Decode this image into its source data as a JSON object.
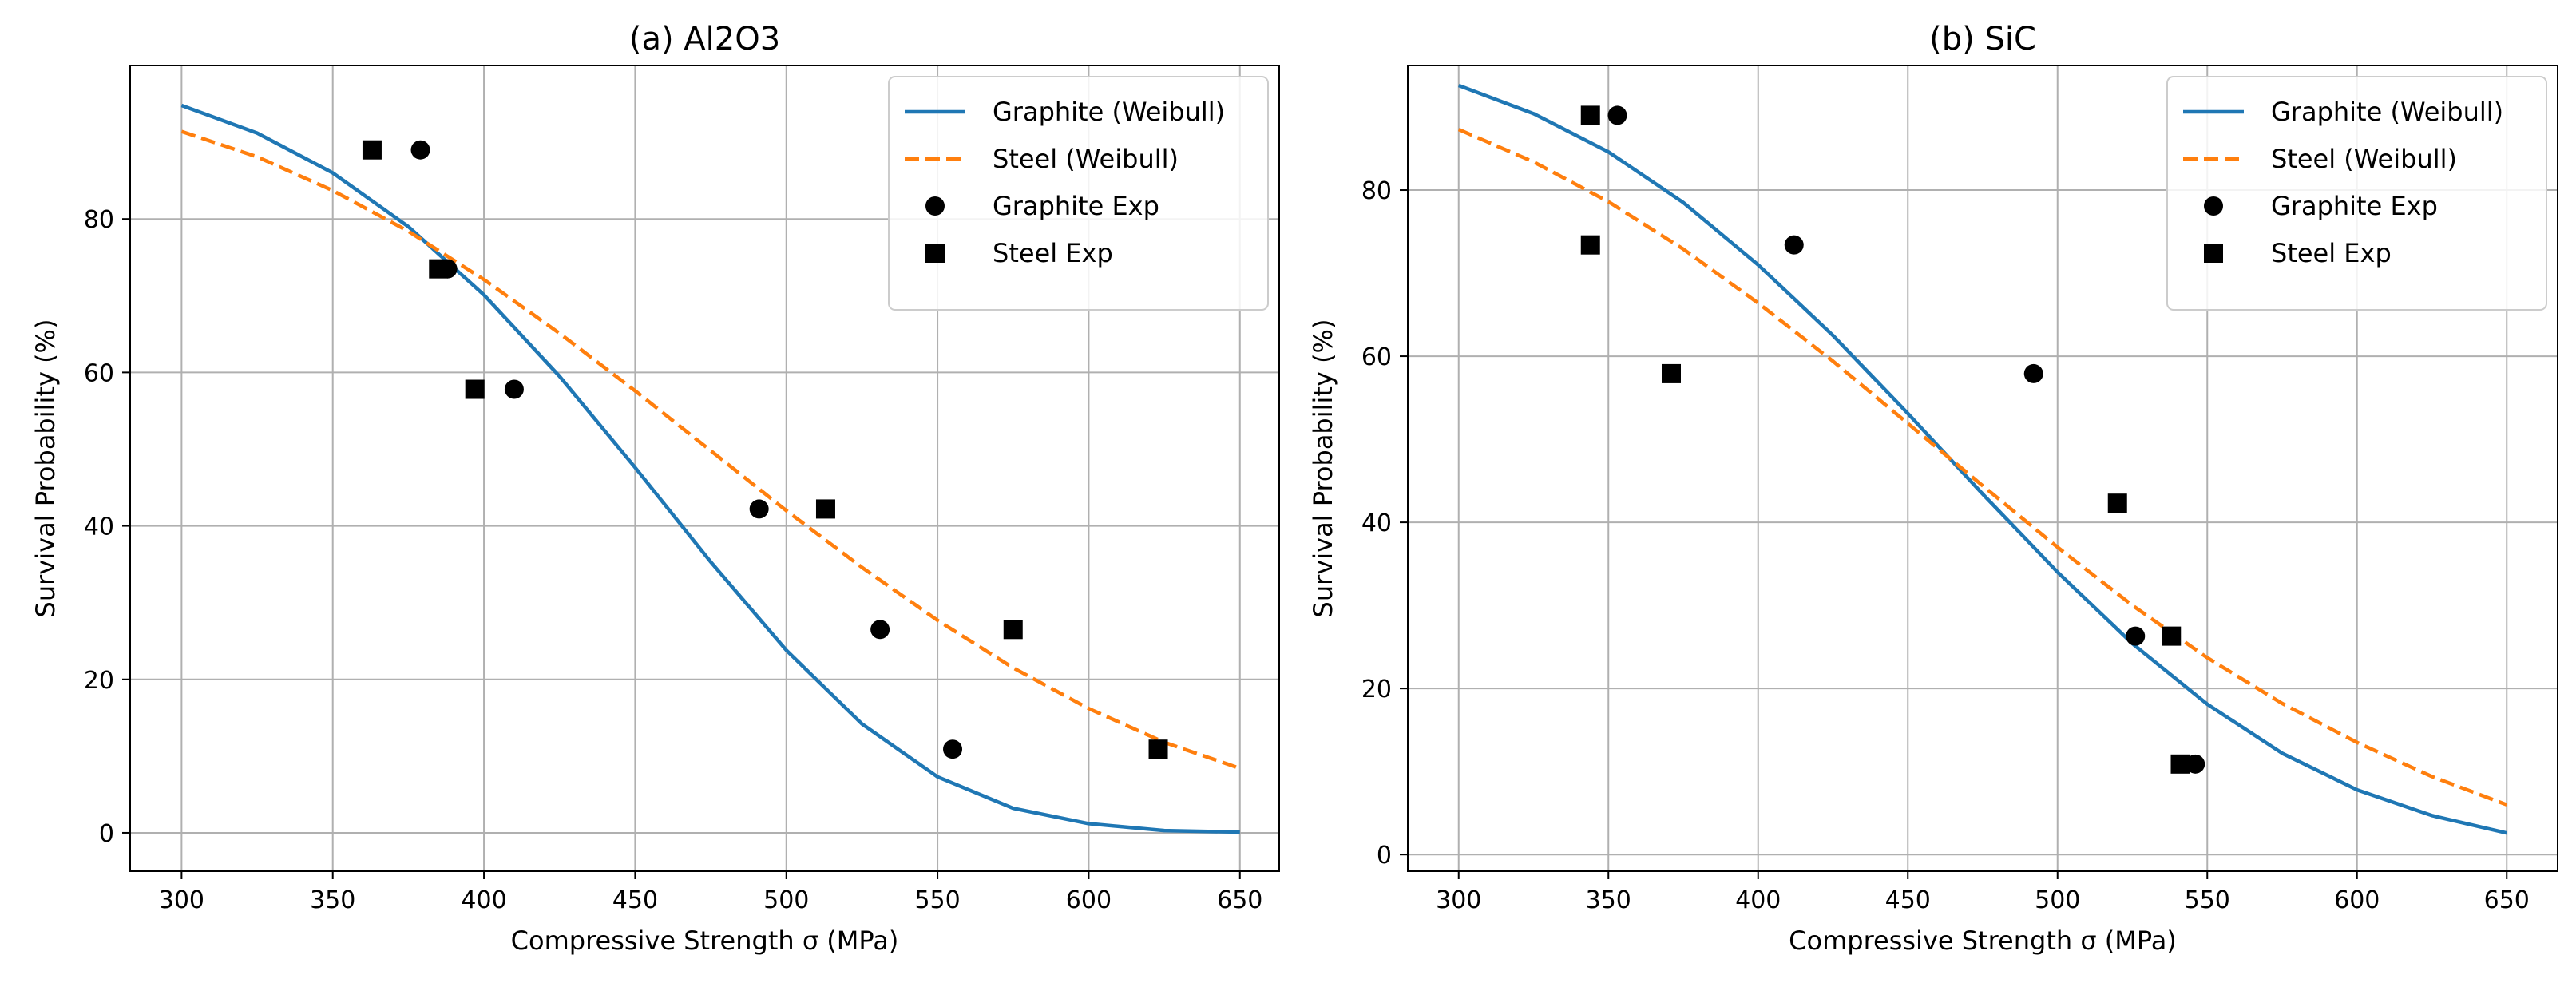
{
  "figure": {
    "colors": {
      "graphite_line": "#1f77b4",
      "steel_line": "#ff7f0e",
      "markers": "#000000",
      "grid": "#b0b0b0"
    }
  },
  "chart_data": [
    {
      "type": "line",
      "title": "(a) Al2O3",
      "xlabel": "Compressive Strength σ (MPa)",
      "ylabel": "Survival Probability (%)",
      "xlim": [
        283,
        663
      ],
      "ylim": [
        -5,
        100
      ],
      "xticks": [
        300,
        350,
        400,
        450,
        500,
        550,
        600,
        650
      ],
      "yticks": [
        0,
        20,
        40,
        60,
        80
      ],
      "grid": true,
      "legend_position": "top-right",
      "series": [
        {
          "name": "Graphite (Weibull)",
          "kind": "line",
          "style": "solid",
          "color": "#1f77b4",
          "x": [
            300,
            325,
            350,
            375,
            400,
            425,
            450,
            475,
            500,
            525,
            550,
            575,
            600,
            625,
            650
          ],
          "y": [
            94.8,
            91.2,
            86.0,
            79.0,
            70.1,
            59.5,
            47.6,
            35.3,
            23.8,
            14.2,
            7.3,
            3.2,
            1.2,
            0.3,
            0.1
          ]
        },
        {
          "name": "Steel (Weibull)",
          "kind": "line",
          "style": "dashed",
          "color": "#ff7f0e",
          "x": [
            300,
            325,
            350,
            375,
            400,
            425,
            450,
            475,
            500,
            525,
            550,
            575,
            600,
            625,
            650
          ],
          "y": [
            91.4,
            88.1,
            83.7,
            78.4,
            72.1,
            65.1,
            57.6,
            49.8,
            42.0,
            34.6,
            27.7,
            21.5,
            16.2,
            11.8,
            8.4
          ]
        },
        {
          "name": "Graphite Exp",
          "kind": "scatter",
          "marker": "circle",
          "color": "#000000",
          "x": [
            379,
            388,
            410,
            491,
            531,
            555
          ],
          "y": [
            89.0,
            73.5,
            57.8,
            42.2,
            26.5,
            10.9
          ]
        },
        {
          "name": "Steel Exp",
          "kind": "scatter",
          "marker": "square",
          "color": "#000000",
          "x": [
            363,
            385,
            397,
            513,
            575,
            623
          ],
          "y": [
            89.0,
            73.5,
            57.8,
            42.2,
            26.5,
            10.9
          ]
        }
      ]
    },
    {
      "type": "line",
      "title": "(b) SiC",
      "xlabel": "Compressive Strength σ (MPa)",
      "ylabel": "Survival Probability (%)",
      "xlim": [
        283,
        667
      ],
      "ylim": [
        -2,
        95
      ],
      "xticks": [
        300,
        350,
        400,
        450,
        500,
        550,
        600,
        650
      ],
      "yticks": [
        0,
        20,
        40,
        60,
        80
      ],
      "grid": true,
      "legend_position": "top-right",
      "series": [
        {
          "name": "Graphite (Weibull)",
          "kind": "line",
          "style": "solid",
          "color": "#1f77b4",
          "x": [
            300,
            325,
            350,
            375,
            400,
            425,
            450,
            475,
            500,
            525,
            550,
            575,
            600,
            625,
            650
          ],
          "y": [
            92.6,
            89.2,
            84.6,
            78.5,
            71.0,
            62.5,
            53.1,
            43.4,
            34.0,
            25.4,
            18.1,
            12.2,
            7.8,
            4.7,
            2.6
          ]
        },
        {
          "name": "Steel (Weibull)",
          "kind": "line",
          "style": "dashed",
          "color": "#ff7f0e",
          "x": [
            300,
            325,
            350,
            375,
            400,
            425,
            450,
            475,
            500,
            525,
            550,
            575,
            600,
            625,
            650
          ],
          "y": [
            87.3,
            83.4,
            78.6,
            72.9,
            66.4,
            59.4,
            51.9,
            44.4,
            37.0,
            30.0,
            23.7,
            18.2,
            13.5,
            9.4,
            6.0
          ]
        },
        {
          "name": "Graphite Exp",
          "kind": "scatter",
          "marker": "circle",
          "color": "#000000",
          "x": [
            353,
            412,
            492,
            526,
            546
          ],
          "y": [
            89.0,
            73.4,
            57.9,
            26.3,
            10.9
          ]
        },
        {
          "name": "Steel Exp",
          "kind": "scatter",
          "marker": "square",
          "color": "#000000",
          "x": [
            344,
            344,
            371,
            520,
            538,
            541
          ],
          "y": [
            89.0,
            73.4,
            57.9,
            42.3,
            26.3,
            10.9
          ]
        }
      ]
    }
  ]
}
